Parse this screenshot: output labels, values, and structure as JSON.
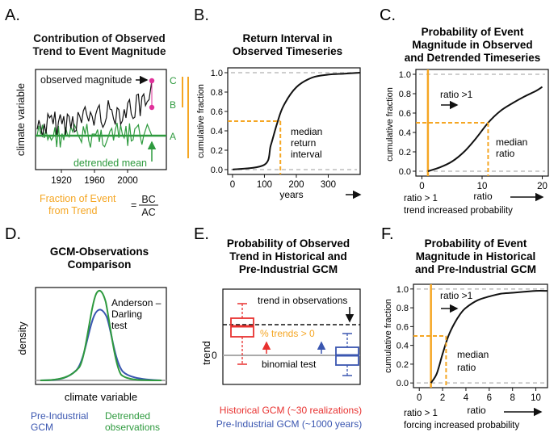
{
  "colors": {
    "black": "#111111",
    "green": "#2e9a3e",
    "orange": "#f5a623",
    "red": "#e8312f",
    "blue": "#3a56b0",
    "gray": "#aaaaaa",
    "magenta": "#e0309a",
    "dashgray": "#bdbdbd"
  },
  "panels": {
    "a": {
      "letter": "A.",
      "title1": "Contribution of Observed",
      "title2": "Trend to Event Magnitude",
      "ylabel": "climate variable",
      "observed_label": "observed magnitude",
      "detrended_label": "detrended mean",
      "point_c": "C",
      "point_b": "B",
      "point_a": "A",
      "x_ticks": [
        "1920",
        "1960",
        "2000"
      ],
      "fraction_text1": "Fraction of Event",
      "fraction_text2": "from Trend",
      "eq": "=",
      "num": "BC",
      "den": "AC"
    },
    "b": {
      "letter": "B.",
      "title1": "Return Interval in",
      "title2": "Observed Timeseries",
      "ylabel": "cumulative fraction",
      "xlabel": "years",
      "annotation": [
        "median",
        "return",
        "interval"
      ],
      "x_ticks": [
        "0",
        "100",
        "200",
        "300"
      ],
      "y_ticks": [
        "0.0",
        "0.2",
        "0.4",
        "0.6",
        "0.8",
        "1.0"
      ]
    },
    "c": {
      "letter": "C.",
      "title1": "Probability of Event",
      "title2": "Magnitude in Observed",
      "title3": "and Detrended Timeseries",
      "ylabel": "cumulative fraction",
      "xlabel": "ratio",
      "ratio_gt1": "ratio >1",
      "annotation": [
        "median",
        "ratio"
      ],
      "footer1": "ratio > 1",
      "footer2": "trend increased probability",
      "x_ticks": [
        "0",
        "10",
        "20"
      ],
      "y_ticks": [
        "0.0",
        "0.2",
        "0.4",
        "0.6",
        "0.8",
        "1.0"
      ]
    },
    "d": {
      "letter": "D.",
      "title1": "GCM-Observations",
      "title2": "Comparison",
      "ylabel": "density",
      "xlabel": "climate variable",
      "test_label": [
        "Anderson –",
        "Darling",
        "test"
      ],
      "legend_pi": [
        "Pre-Industrial",
        "GCM"
      ],
      "legend_dt": [
        "Detrended",
        "observations"
      ]
    },
    "e": {
      "letter": "E.",
      "title1": "Probability of Observed",
      "title2": "Trend in Historical and",
      "title3": "Pre-Industrial GCM",
      "ylabel": "trend",
      "zero": "0",
      "trend_obs": "trend in observations",
      "pct_label": "% trends > 0",
      "binomial": "binomial test",
      "legend_hist": "Historical GCM (~30 realizations)",
      "legend_pi": "Pre-Industrial GCM (~1000 years)"
    },
    "f": {
      "letter": "F.",
      "title1": "Probability of Event",
      "title2": "Magnitude in Historical",
      "title3": "and Pre-Industrial GCM",
      "ylabel": "cumulative fraction",
      "xlabel": "ratio",
      "ratio_gt1": "ratio >1",
      "annotation": [
        "median",
        "ratio"
      ],
      "footer1": "ratio > 1",
      "footer2": "forcing increased probability",
      "x_ticks": [
        "0",
        "2",
        "4",
        "6",
        "8",
        "10"
      ],
      "y_ticks": [
        "0.0",
        "0.2",
        "0.4",
        "0.6",
        "0.8",
        "1.0"
      ]
    }
  },
  "chart_data": [
    {
      "type": "line",
      "panel": "B",
      "title": "Return Interval in Observed Timeseries",
      "xlabel": "years",
      "ylabel": "cumulative fraction",
      "xlim": [
        -15,
        400
      ],
      "ylim": [
        -0.05,
        1.05
      ],
      "series": [
        {
          "x": [
            0,
            100,
            120,
            140,
            160,
            200,
            250,
            300,
            350,
            400
          ],
          "y": [
            0.0,
            0.05,
            0.25,
            0.48,
            0.66,
            0.85,
            0.95,
            0.98,
            0.99,
            1.0
          ]
        }
      ],
      "median_x": 150,
      "median_y": 0.5
    },
    {
      "type": "line",
      "panel": "C",
      "title": "Probability of Event Magnitude in Observed and Detrended Timeseries",
      "xlabel": "ratio",
      "ylabel": "cumulative fraction",
      "xlim": [
        -1,
        21
      ],
      "ylim": [
        -0.05,
        1.05
      ],
      "series": [
        {
          "x": [
            1,
            3,
            5,
            7,
            9,
            11,
            13,
            15,
            17,
            19,
            20
          ],
          "y": [
            0.0,
            0.04,
            0.1,
            0.2,
            0.34,
            0.5,
            0.62,
            0.7,
            0.77,
            0.83,
            0.87
          ]
        }
      ],
      "ratio_line_x": 1,
      "median_x": 11,
      "median_y": 0.5
    },
    {
      "type": "line",
      "panel": "F",
      "title": "Probability of Event Magnitude in Historical and Pre-Industrial GCM",
      "xlabel": "ratio",
      "ylabel": "cumulative fraction",
      "xlim": [
        -0.5,
        11
      ],
      "ylim": [
        -0.05,
        1.05
      ],
      "series": [
        {
          "x": [
            1,
            1.5,
            2,
            2.5,
            3,
            3.5,
            4,
            5,
            6,
            7,
            8,
            9,
            10,
            11
          ],
          "y": [
            0.0,
            0.1,
            0.31,
            0.5,
            0.63,
            0.73,
            0.8,
            0.88,
            0.92,
            0.95,
            0.96,
            0.97,
            0.98,
            0.98
          ]
        }
      ],
      "ratio_line_x": 1,
      "median_x": 2.3,
      "median_y": 0.5
    }
  ]
}
